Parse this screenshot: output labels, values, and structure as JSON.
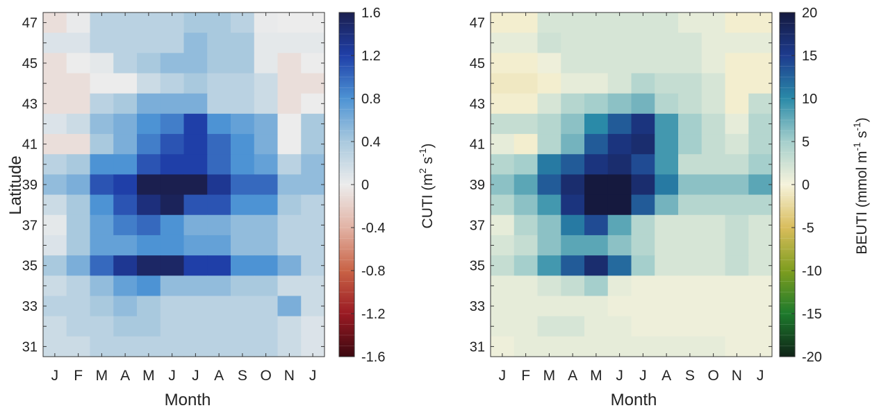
{
  "chart_data": [
    {
      "type": "heatmap",
      "xlabel": "Month",
      "ylabel": "Latitude",
      "x_ticklabels": [
        "J",
        "F",
        "M",
        "A",
        "M",
        "J",
        "J",
        "A",
        "S",
        "O",
        "N",
        "J"
      ],
      "y_ticks": [
        31,
        33,
        35,
        37,
        39,
        41,
        43,
        45,
        47
      ],
      "ylim": [
        30.5,
        47.5
      ],
      "row_latitudes": [
        47,
        46,
        45,
        44,
        43,
        42,
        41,
        40,
        39,
        38,
        37,
        36,
        35,
        34,
        33,
        32,
        31
      ],
      "colorbar": {
        "label_main": "CUTI (m",
        "label_sup1": "2",
        "label_mid": " s",
        "label_sup2": "-1",
        "label_end": ")",
        "range": [
          -1.6,
          1.6
        ],
        "ticks": [
          1.6,
          1.2,
          0.8,
          0.4,
          0,
          -0.4,
          -0.8,
          -1.2,
          -1.6
        ],
        "tick_labels": [
          "1.6",
          "1.2",
          "0.8",
          "0.4",
          "0",
          "-0.4",
          "-0.8",
          "-1.2",
          "-1.6"
        ],
        "colors": [
          "#1b1f4f",
          "#1f3fa8",
          "#4d93d4",
          "#a9c9de",
          "#ececec",
          "#e2b3a5",
          "#c96346",
          "#9a1a23",
          "#3c0810"
        ]
      },
      "values": [
        [
          -0.1,
          0.02,
          0.3,
          0.3,
          0.3,
          0.3,
          0.4,
          0.4,
          0.3,
          0.02,
          0.0,
          0.0
        ],
        [
          0.1,
          0.1,
          0.3,
          0.3,
          0.3,
          0.3,
          0.5,
          0.4,
          0.4,
          0.05,
          0.05,
          0.05
        ],
        [
          -0.1,
          0.0,
          0.05,
          0.3,
          0.4,
          0.5,
          0.5,
          0.4,
          0.4,
          0.05,
          -0.1,
          0.0
        ],
        [
          -0.1,
          -0.1,
          0.0,
          0.0,
          0.2,
          0.3,
          0.4,
          0.3,
          0.3,
          0.2,
          -0.1,
          -0.1
        ],
        [
          -0.1,
          -0.1,
          0.3,
          0.4,
          0.6,
          0.6,
          0.6,
          0.3,
          0.3,
          0.2,
          -0.1,
          0.0
        ],
        [
          0.1,
          0.2,
          0.5,
          0.6,
          0.8,
          0.9,
          1.2,
          0.8,
          0.7,
          0.6,
          0.0,
          0.4
        ],
        [
          -0.1,
          -0.1,
          0.4,
          0.6,
          0.9,
          1.1,
          1.2,
          1.0,
          0.8,
          0.6,
          0.0,
          0.4
        ],
        [
          0.3,
          0.4,
          0.8,
          0.8,
          1.1,
          1.2,
          1.2,
          1.0,
          0.8,
          0.7,
          0.3,
          0.5
        ],
        [
          0.5,
          0.6,
          1.1,
          1.2,
          1.6,
          1.6,
          1.6,
          1.3,
          1.0,
          1.0,
          0.5,
          0.5
        ],
        [
          0.2,
          0.4,
          0.8,
          1.1,
          1.4,
          1.55,
          1.1,
          1.1,
          0.8,
          0.8,
          0.4,
          0.3
        ],
        [
          0.05,
          0.4,
          0.7,
          0.9,
          1.0,
          0.8,
          0.6,
          0.6,
          0.5,
          0.5,
          0.3,
          0.3
        ],
        [
          0.1,
          0.4,
          0.7,
          0.7,
          0.8,
          0.8,
          0.7,
          0.7,
          0.5,
          0.5,
          0.3,
          0.3
        ],
        [
          0.4,
          0.6,
          1.0,
          1.3,
          1.5,
          1.5,
          1.2,
          1.2,
          0.8,
          0.8,
          0.6,
          0.3
        ],
        [
          0.2,
          0.3,
          0.5,
          0.7,
          0.8,
          0.5,
          0.5,
          0.5,
          0.4,
          0.4,
          0.2,
          0.2
        ],
        [
          0.3,
          0.3,
          0.4,
          0.5,
          0.4,
          0.3,
          0.3,
          0.3,
          0.3,
          0.3,
          0.6,
          0.2
        ],
        [
          0.2,
          0.3,
          0.3,
          0.4,
          0.4,
          0.3,
          0.3,
          0.3,
          0.3,
          0.3,
          0.2,
          0.1
        ],
        [
          0.2,
          0.2,
          0.3,
          0.3,
          0.3,
          0.3,
          0.3,
          0.3,
          0.3,
          0.3,
          0.2,
          0.1
        ]
      ]
    },
    {
      "type": "heatmap",
      "xlabel": "Month",
      "x_ticklabels": [
        "J",
        "F",
        "M",
        "A",
        "M",
        "J",
        "J",
        "A",
        "S",
        "O",
        "N",
        "J"
      ],
      "y_ticks": [
        31,
        33,
        35,
        37,
        39,
        41,
        43,
        45,
        47
      ],
      "ylim": [
        30.5,
        47.5
      ],
      "row_latitudes": [
        47,
        46,
        45,
        44,
        43,
        42,
        41,
        40,
        39,
        38,
        37,
        36,
        35,
        34,
        33,
        32,
        31
      ],
      "colorbar": {
        "label_main": "BEUTI (mmol m",
        "label_sup1": "-1",
        "label_mid": " s",
        "label_sup2": "-1",
        "label_end": ")",
        "range": [
          -20,
          20
        ],
        "ticks": [
          20,
          15,
          10,
          5,
          0,
          -5,
          -10,
          -15,
          -20
        ],
        "tick_labels": [
          "20",
          "15",
          "10",
          "5",
          "0",
          "-5",
          "-10",
          "-15",
          "-20"
        ],
        "colors": [
          "#15193e",
          "#1d3b8e",
          "#2a8aa8",
          "#a5cfcc",
          "#f6f3dc",
          "#d9bd5c",
          "#7e9d1f",
          "#1d7a2c",
          "#0f2317"
        ]
      },
      "values": [
        [
          -0.5,
          -0.5,
          2,
          2,
          2,
          2,
          2,
          2,
          1,
          1,
          -0.5,
          -0.5
        ],
        [
          1,
          1,
          2.5,
          2,
          2,
          2,
          2,
          2,
          2,
          1,
          1,
          1
        ],
        [
          -0.5,
          -0.5,
          0.5,
          2,
          2,
          2,
          2,
          2,
          2,
          1,
          -0.5,
          -0.5
        ],
        [
          -1,
          -1,
          -0.5,
          1,
          1,
          2,
          4,
          3,
          3,
          2,
          -0.5,
          -0.5
        ],
        [
          -0.5,
          -0.5,
          2,
          4,
          5,
          6,
          7,
          4,
          3,
          2,
          -0.5,
          3
        ],
        [
          3,
          3,
          4,
          6,
          10,
          13,
          16,
          9,
          5,
          3,
          1,
          4
        ],
        [
          1,
          -0.5,
          4,
          7,
          13,
          16,
          17,
          9,
          5,
          3,
          2,
          4
        ],
        [
          4,
          5,
          11,
          13,
          16,
          17,
          14,
          9,
          3,
          3,
          3,
          5
        ],
        [
          6,
          8,
          13,
          17,
          20,
          20,
          17,
          11,
          6,
          6,
          6,
          8
        ],
        [
          4,
          6,
          9,
          16,
          20,
          20,
          13,
          7,
          4,
          4,
          4,
          4
        ],
        [
          1,
          4,
          6,
          11,
          14,
          8,
          4,
          2,
          2,
          2,
          3,
          2
        ],
        [
          2,
          3,
          6,
          8,
          8,
          6,
          4,
          2,
          2,
          2,
          3,
          2
        ],
        [
          3,
          5,
          9,
          13,
          17,
          12,
          5,
          2,
          2,
          2,
          3,
          2
        ],
        [
          1,
          1,
          2,
          3,
          5,
          1,
          0.5,
          0.5,
          0.5,
          0.5,
          0.5,
          0.5
        ],
        [
          1,
          1,
          1,
          1,
          1,
          0.5,
          0.5,
          0.5,
          0.5,
          0.5,
          0.5,
          0.5
        ],
        [
          1,
          1,
          2,
          2,
          1,
          1,
          0.5,
          0.5,
          0.5,
          0.5,
          0.5,
          0.5
        ],
        [
          0.5,
          1,
          1,
          1,
          1,
          1,
          1,
          1,
          1,
          1,
          0.5,
          0.5
        ]
      ]
    }
  ]
}
